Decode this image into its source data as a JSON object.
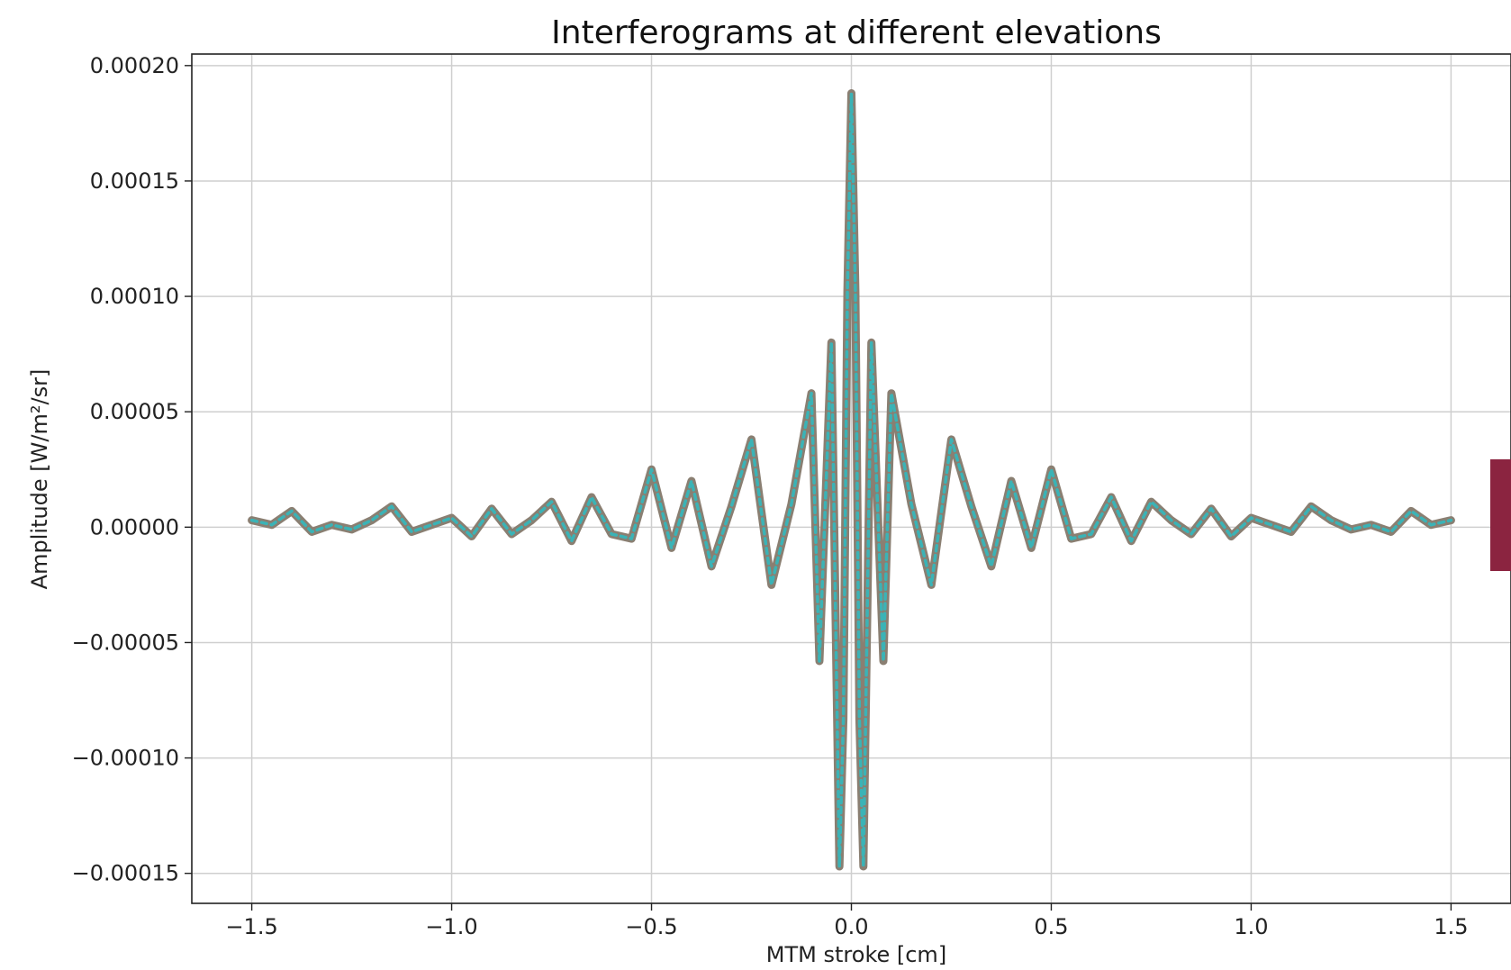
{
  "chart_data": {
    "type": "line",
    "title": "Interferograms at different elevations",
    "xlabel": "MTM stroke [cm]",
    "ylabel": "Amplitude [W/m²/sr]",
    "xlim": [
      -1.65,
      1.65
    ],
    "ylim": [
      -0.000163,
      0.000205
    ],
    "xticks": [
      -1.5,
      -1.0,
      -0.5,
      0.0,
      0.5,
      1.0,
      1.5
    ],
    "xtick_labels": [
      "−1.5",
      "−1.0",
      "−0.5",
      "0.0",
      "0.5",
      "1.0",
      "1.5"
    ],
    "yticks": [
      0.0002,
      0.00015,
      0.0001,
      5e-05,
      0.0,
      -5e-05,
      -0.0001,
      -0.00015
    ],
    "ytick_labels": [
      "0.00020",
      "0.00015",
      "0.00010",
      "0.00005",
      "0.00000",
      "−0.00005",
      "−0.00010",
      "−0.00015"
    ],
    "grid": true,
    "colors": {
      "series_outer": "#8a7f72",
      "series_inner": "#3bb3b6",
      "partial_legend": "#8b2440"
    },
    "series": [
      {
        "color": "#8a7f72",
        "x": [
          -1.5,
          -1.45,
          -1.4,
          -1.35,
          -1.3,
          -1.25,
          -1.2,
          -1.15,
          -1.1,
          -1.05,
          -1.0,
          -0.95,
          -0.9,
          -0.85,
          -0.8,
          -0.75,
          -0.7,
          -0.65,
          -0.6,
          -0.55,
          -0.5,
          -0.45,
          -0.4,
          -0.35,
          -0.3,
          -0.25,
          -0.2,
          -0.15,
          -0.1,
          -0.08,
          -0.05,
          -0.03,
          -0.02,
          -0.01,
          0.0,
          0.01,
          0.02,
          0.03,
          0.05,
          0.08,
          0.1,
          0.15,
          0.2,
          0.25,
          0.3,
          0.35,
          0.4,
          0.45,
          0.5,
          0.55,
          0.6,
          0.65,
          0.7,
          0.75,
          0.8,
          0.85,
          0.9,
          0.95,
          1.0,
          1.05,
          1.1,
          1.15,
          1.2,
          1.25,
          1.3,
          1.35,
          1.4,
          1.45,
          1.5
        ],
        "y": [
          3e-06,
          1e-06,
          7e-06,
          -2e-06,
          1e-06,
          -1e-06,
          3e-06,
          9e-06,
          -2e-06,
          1e-06,
          4e-06,
          -4e-06,
          8e-06,
          -3e-06,
          3e-06,
          1.1e-05,
          -6e-06,
          1.3e-05,
          -3e-06,
          -5e-06,
          2.5e-05,
          -9e-06,
          2e-05,
          -1.7e-05,
          9e-06,
          3.8e-05,
          -2.5e-05,
          1e-05,
          5.8e-05,
          -5.8e-05,
          8e-05,
          -0.000147,
          -8.3e-05,
          0.000102,
          0.000188,
          0.000102,
          -8.3e-05,
          -0.000147,
          8e-05,
          -5.8e-05,
          5.8e-05,
          1e-05,
          -2.5e-05,
          3.8e-05,
          9e-06,
          -1.7e-05,
          2e-05,
          -9e-06,
          2.5e-05,
          -5e-06,
          -3e-06,
          1.3e-05,
          -6e-06,
          1.1e-05,
          3e-06,
          -3e-06,
          8e-06,
          -4e-06,
          4e-06,
          1e-06,
          -2e-06,
          9e-06,
          3e-06,
          -1e-06,
          1e-06,
          -2e-06,
          7e-06,
          1e-06,
          3e-06
        ]
      },
      {
        "color": "#3bb3b6",
        "x": [
          -1.5,
          -1.45,
          -1.4,
          -1.35,
          -1.3,
          -1.25,
          -1.2,
          -1.15,
          -1.1,
          -1.05,
          -1.0,
          -0.95,
          -0.9,
          -0.85,
          -0.8,
          -0.75,
          -0.7,
          -0.65,
          -0.6,
          -0.55,
          -0.5,
          -0.45,
          -0.4,
          -0.35,
          -0.3,
          -0.25,
          -0.2,
          -0.15,
          -0.1,
          -0.08,
          -0.05,
          -0.03,
          -0.02,
          -0.01,
          0.0,
          0.01,
          0.02,
          0.03,
          0.05,
          0.08,
          0.1,
          0.15,
          0.2,
          0.25,
          0.3,
          0.35,
          0.4,
          0.45,
          0.5,
          0.55,
          0.6,
          0.65,
          0.7,
          0.75,
          0.8,
          0.85,
          0.9,
          0.95,
          1.0,
          1.05,
          1.1,
          1.15,
          1.2,
          1.25,
          1.3,
          1.35,
          1.4,
          1.45,
          1.5
        ],
        "y": [
          3e-06,
          1e-06,
          7e-06,
          -2e-06,
          1e-06,
          -1e-06,
          3e-06,
          9e-06,
          -2e-06,
          1e-06,
          4e-06,
          -4e-06,
          8e-06,
          -3e-06,
          3e-06,
          1.1e-05,
          -6e-06,
          1.3e-05,
          -3e-06,
          -5e-06,
          2.5e-05,
          -9e-06,
          2e-05,
          -1.7e-05,
          9e-06,
          3.8e-05,
          -2.5e-05,
          1e-05,
          5.8e-05,
          -5.8e-05,
          8e-05,
          -0.000147,
          -8.3e-05,
          0.000102,
          0.000188,
          0.000102,
          -8.3e-05,
          -0.000147,
          8e-05,
          -5.8e-05,
          5.8e-05,
          1e-05,
          -2.5e-05,
          3.8e-05,
          9e-06,
          -1.7e-05,
          2e-05,
          -9e-06,
          2.5e-05,
          -5e-06,
          -3e-06,
          1.3e-05,
          -6e-06,
          1.1e-05,
          3e-06,
          -3e-06,
          8e-06,
          -4e-06,
          4e-06,
          1e-06,
          -2e-06,
          9e-06,
          3e-06,
          -1e-06,
          1e-06,
          -2e-06,
          7e-06,
          1e-06,
          3e-06
        ]
      }
    ]
  }
}
